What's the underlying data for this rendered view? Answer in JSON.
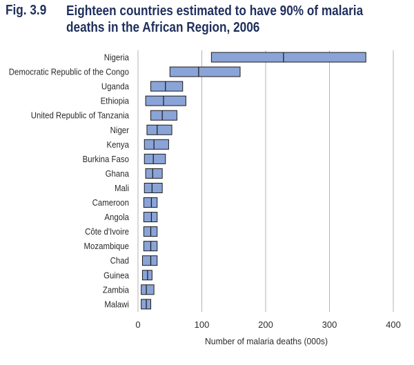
{
  "figure": {
    "number": "Fig. 3.9",
    "title": "Eighteen countries estimated to have 90% of malaria deaths in the African Region, 2006"
  },
  "chart_data": {
    "type": "bar",
    "subtype": "horizontal-range-with-point-estimate",
    "title": "Eighteen countries estimated to have 90% of malaria deaths in the African Region, 2006",
    "xlabel": "Number of malaria deaths (000s)",
    "ylabel": "",
    "xlim": [
      0,
      400
    ],
    "xticks": [
      0,
      100,
      200,
      300,
      400
    ],
    "grid": "vertical",
    "bar_color": "#8aa4d8",
    "bar_edge_color": "#1a1a1a",
    "gridline_color": "#b3b3b3",
    "categories": [
      "Nigeria",
      "Democratic Republic of the Congo",
      "Uganda",
      "Ethiopia",
      "United Republic of Tanzania",
      "Niger",
      "Kenya",
      "Burkina Faso",
      "Ghana",
      "Mali",
      "Cameroon",
      "Angola",
      "Côte d'Ivoire",
      "Mozambique",
      "Chad",
      "Guinea",
      "Zambia",
      "Malawi"
    ],
    "series": [
      {
        "name": "",
        "low": [
          115,
          50,
          20,
          12,
          20,
          14,
          10,
          10,
          12,
          10,
          9,
          9,
          9,
          9,
          7,
          7,
          5,
          5
        ],
        "point": [
          228,
          95,
          43,
          40,
          38,
          30,
          25,
          24,
          23,
          22,
          21,
          21,
          20,
          20,
          20,
          15,
          13,
          13
        ],
        "high": [
          357,
          160,
          70,
          75,
          61,
          53,
          48,
          43,
          38,
          38,
          30,
          30,
          30,
          30,
          30,
          22,
          25,
          20
        ]
      }
    ]
  }
}
